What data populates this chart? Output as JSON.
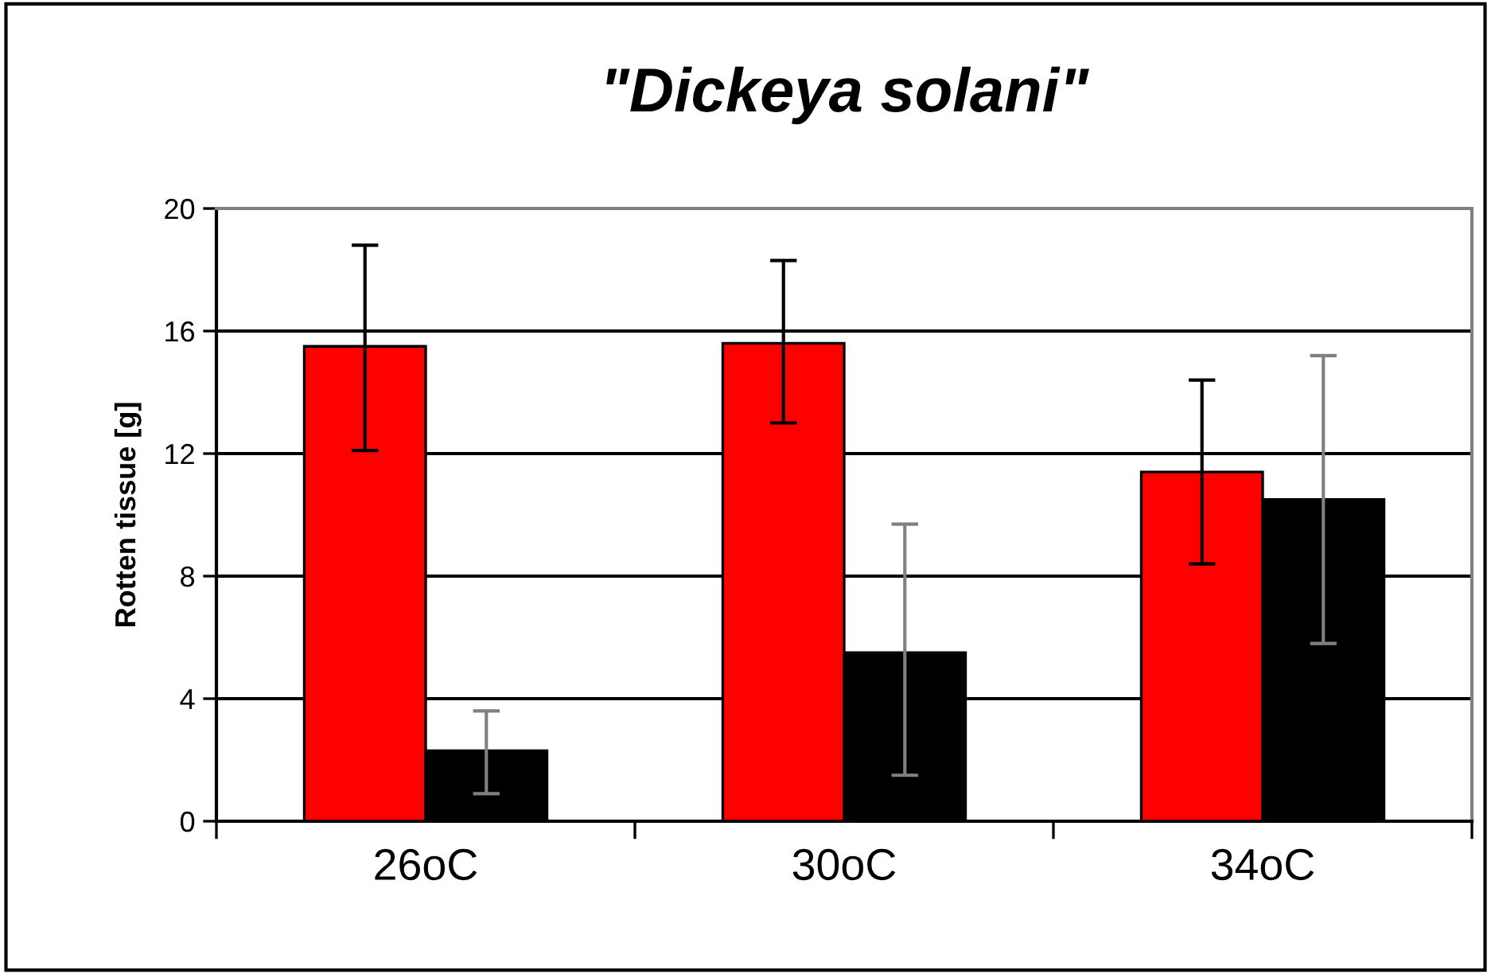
{
  "chart_data": {
    "type": "bar",
    "title": "\"Dickeya solani\"",
    "ylabel": "Rotten tissue [g]",
    "categories": [
      "26oC",
      "30oC",
      "34oC"
    ],
    "series": [
      {
        "color": "#ff0000",
        "values": [
          15.5,
          15.6,
          11.4
        ],
        "errors": [
          [
            12.1,
            18.8
          ],
          [
            13.0,
            18.3
          ],
          [
            8.4,
            14.4
          ]
        ]
      },
      {
        "color": "#000000",
        "values": [
          2.3,
          5.5,
          10.5
        ],
        "errors": [
          [
            0.9,
            3.6
          ],
          [
            1.5,
            9.7
          ],
          [
            5.8,
            15.2
          ]
        ]
      }
    ],
    "ylim": [
      0,
      20
    ],
    "yticks": [
      0,
      4,
      8,
      12,
      16,
      20
    ],
    "grid": "y",
    "legend": false
  }
}
